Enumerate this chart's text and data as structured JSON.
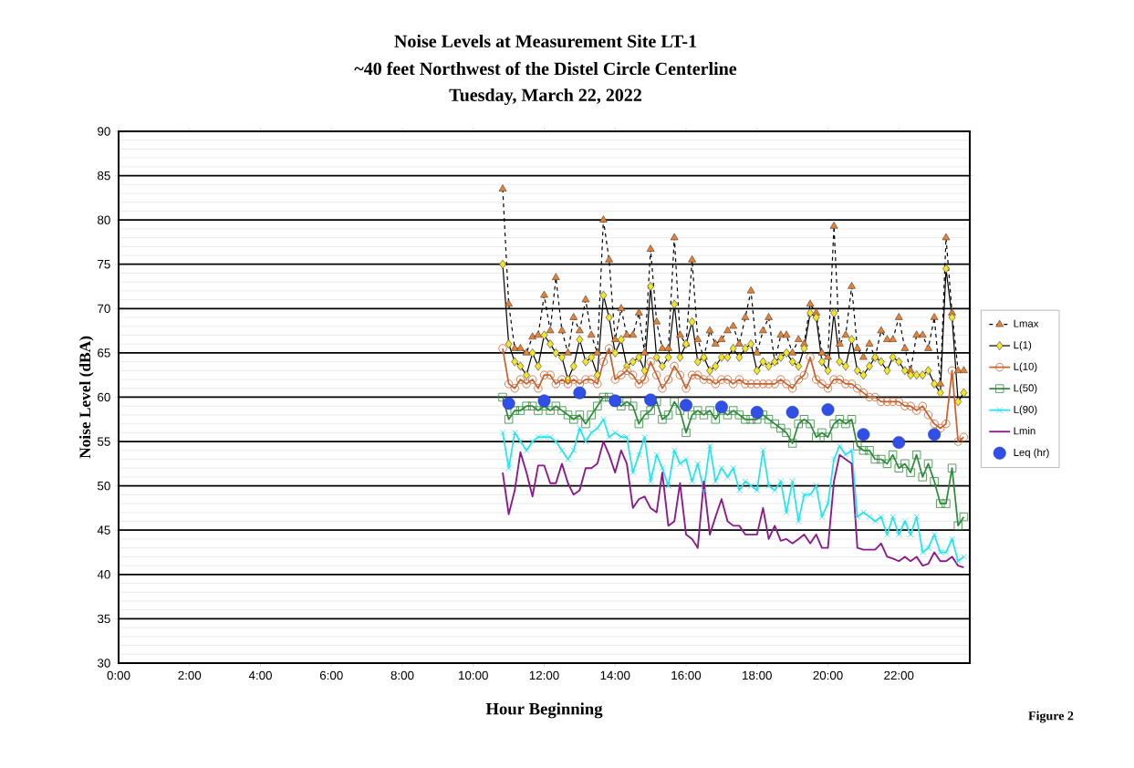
{
  "chart_data": {
    "type": "line",
    "title": "Noise Levels at Measurement Site LT-1",
    "subtitle": "~40 feet Northwest of the Distel Circle Centerline",
    "annotations": [
      "Tuesday, March 22, 2022",
      "Figure 2"
    ],
    "xlabel": "Hour Beginning",
    "ylabel": "Noise Level (dBA)",
    "xlim": [
      0,
      24
    ],
    "ylim": [
      30,
      90
    ],
    "xticks": [
      {
        "value": 0,
        "label": "0:00"
      },
      {
        "value": 2,
        "label": "2:00"
      },
      {
        "value": 4,
        "label": "4:00"
      },
      {
        "value": 6,
        "label": "6:00"
      },
      {
        "value": 8,
        "label": "8:00"
      },
      {
        "value": 10,
        "label": "10:00"
      },
      {
        "value": 12,
        "label": "12:00"
      },
      {
        "value": 14,
        "label": "14:00"
      },
      {
        "value": 16,
        "label": "16:00"
      },
      {
        "value": 18,
        "label": "18:00"
      },
      {
        "value": 20,
        "label": "20:00"
      },
      {
        "value": 22,
        "label": "22:00"
      }
    ],
    "yticks": [
      30,
      35,
      40,
      45,
      50,
      55,
      60,
      65,
      70,
      75,
      80,
      85,
      90
    ],
    "grid": "y",
    "legend": "right",
    "x": [
      10.83,
      11,
      11.17,
      11.33,
      11.5,
      11.67,
      11.83,
      12,
      12.17,
      12.33,
      12.5,
      12.67,
      12.83,
      13,
      13.17,
      13.33,
      13.5,
      13.67,
      13.83,
      14,
      14.17,
      14.33,
      14.5,
      14.67,
      14.83,
      15,
      15.17,
      15.33,
      15.5,
      15.67,
      15.83,
      16,
      16.17,
      16.33,
      16.5,
      16.67,
      16.83,
      17,
      17.17,
      17.33,
      17.5,
      17.67,
      17.83,
      18,
      18.17,
      18.33,
      18.5,
      18.67,
      18.83,
      19,
      19.17,
      19.33,
      19.5,
      19.67,
      19.83,
      20,
      20.17,
      20.33,
      20.5,
      20.67,
      20.83,
      21,
      21.17,
      21.33,
      21.5,
      21.67,
      21.83,
      22,
      22.17,
      22.33,
      22.5,
      22.67,
      22.83,
      23,
      23.17,
      23.33,
      23.5,
      23.67,
      23.83
    ],
    "series": [
      {
        "name": "Lmax",
        "color": "#f07f2a",
        "marker": "triangle",
        "line_style": "dashed",
        "values": [
          83.5,
          70.5,
          65.5,
          65.5,
          65,
          66.8,
          67,
          71.5,
          67.5,
          73.5,
          67.5,
          65,
          69,
          67.5,
          71,
          67,
          65,
          80,
          75.5,
          66.5,
          70,
          67,
          67,
          69.5,
          65,
          76.7,
          68.5,
          65.5,
          65.5,
          78,
          67,
          66,
          75.5,
          66.5,
          64.5,
          67.5,
          66,
          66.5,
          67.5,
          68,
          66,
          69,
          72,
          65,
          67.5,
          69,
          64,
          67,
          67,
          65,
          66.5,
          66,
          70.5,
          69.5,
          65,
          64.5,
          79.3,
          66,
          67,
          72.5,
          65.5,
          64.5,
          66,
          64.5,
          67.5,
          66.5,
          66.5,
          69,
          65.5,
          63,
          67,
          67,
          65.5,
          69,
          61.5,
          78,
          69.5,
          63,
          63
        ]
      },
      {
        "name": "L(1)",
        "color": "#f5e625",
        "marker": "diamond",
        "line_style": "solid",
        "values": [
          75,
          66,
          64,
          63.5,
          62.5,
          65,
          63.5,
          67,
          66,
          65,
          64.5,
          62,
          63.5,
          66.5,
          64,
          64.5,
          62.5,
          71.5,
          69,
          65,
          66.5,
          63.5,
          64,
          64.5,
          63,
          72.5,
          64.5,
          63.5,
          64.5,
          70.5,
          64.5,
          66,
          68.5,
          64,
          64.5,
          63,
          63.5,
          64.5,
          64.5,
          65.5,
          64.5,
          65.5,
          66,
          63,
          64,
          63.5,
          64,
          64.5,
          65,
          64,
          63.5,
          65.5,
          69.5,
          69,
          64,
          63,
          69.5,
          64,
          63.5,
          66.5,
          63,
          62.5,
          63.5,
          64.5,
          64,
          63,
          64.5,
          64,
          63,
          62.5,
          62.5,
          62.5,
          63,
          61.5,
          60.5,
          74.5,
          69,
          59.5,
          60.5
        ]
      },
      {
        "name": "L(10)",
        "color": "#c8622e",
        "marker": "circle",
        "line_style": "solid",
        "values": [
          65.5,
          61.5,
          61,
          62,
          61.5,
          62,
          61,
          62.5,
          62.5,
          61.5,
          62,
          61.5,
          62,
          61.5,
          62,
          62,
          61.5,
          64,
          65.5,
          62,
          62.5,
          63,
          62.5,
          61.5,
          62,
          64,
          62.5,
          61,
          62,
          63.5,
          62.5,
          61,
          62.5,
          62.5,
          62,
          62,
          61.5,
          62,
          62,
          61.5,
          62,
          61.5,
          61.5,
          61.5,
          61.5,
          61.5,
          61.5,
          62,
          61.5,
          61,
          62,
          62.5,
          64.5,
          62,
          61.5,
          61,
          62,
          62,
          61.5,
          61.5,
          61,
          60.5,
          60,
          60,
          59.5,
          59.5,
          59.5,
          59.5,
          59,
          59,
          58.5,
          59,
          58,
          57,
          56.5,
          57,
          63,
          55,
          55.5
        ]
      },
      {
        "name": "L(50)",
        "color": "#2e8b3a",
        "marker": "square",
        "line_style": "solid",
        "values": [
          60,
          57.5,
          58.5,
          58.5,
          59,
          59,
          58.5,
          59,
          58.5,
          59,
          58.5,
          58,
          57.5,
          58,
          57,
          58,
          59,
          60,
          60,
          59.5,
          59,
          59.5,
          59,
          57,
          58,
          58.5,
          59.5,
          57.5,
          58,
          59.5,
          58.5,
          56,
          58,
          58.5,
          58,
          58.5,
          57.5,
          58.5,
          58,
          58.5,
          58,
          57.5,
          57.5,
          57.5,
          58,
          57.5,
          57,
          56.5,
          56,
          54.8,
          57,
          57.5,
          57,
          55.5,
          56,
          55.5,
          57,
          57.5,
          57,
          57.5,
          54.5,
          54,
          54,
          53,
          53,
          52.5,
          53.5,
          52,
          52.5,
          51.5,
          53.5,
          51,
          52.5,
          50.5,
          48,
          48,
          52,
          45.5,
          46.5
        ]
      },
      {
        "name": "L(90)",
        "color": "#22e5f0",
        "marker": "cross",
        "line_style": "solid",
        "values": [
          56,
          52,
          56,
          55,
          54,
          55,
          55.5,
          55.5,
          55.5,
          55,
          54,
          53,
          54,
          56.5,
          55,
          56,
          56.5,
          57.5,
          55.5,
          56,
          55.5,
          55.5,
          51.5,
          53.5,
          55.5,
          50.5,
          53.5,
          52,
          50,
          54,
          52.5,
          53,
          50.5,
          52.5,
          49.5,
          54.5,
          50.5,
          52,
          51,
          52,
          49.5,
          50.5,
          50,
          49.5,
          54,
          50,
          49.5,
          50.5,
          47,
          50.5,
          46,
          49,
          49,
          50,
          46.5,
          48,
          53,
          54.5,
          53.5,
          54,
          46.5,
          47,
          46.5,
          46,
          46.5,
          44.5,
          46.5,
          44.5,
          46,
          44.5,
          46.5,
          42.5,
          43,
          44.5,
          42.5,
          42.5,
          44,
          41.5,
          42
        ]
      },
      {
        "name": "Lmin",
        "color": "#8b1a8b",
        "marker": "none",
        "line_style": "solid",
        "values": [
          51.5,
          46.8,
          49.5,
          53.8,
          51.5,
          48.8,
          52.3,
          52.3,
          50.3,
          50.3,
          52.5,
          50.3,
          49,
          49.5,
          52,
          52,
          52.5,
          55,
          53.5,
          51.5,
          54,
          52.5,
          47.5,
          48.5,
          48.8,
          47.5,
          47,
          51.5,
          45.5,
          46,
          50.3,
          44.5,
          44,
          43,
          50.5,
          44.5,
          46.5,
          48.5,
          46,
          45.5,
          45.5,
          44.5,
          44.5,
          44.5,
          47.5,
          44,
          45.5,
          43.8,
          44,
          43.5,
          44,
          44.5,
          43.5,
          44.5,
          43,
          43,
          50.5,
          53.5,
          53,
          52.5,
          43,
          42.8,
          42.8,
          42.8,
          43.5,
          42,
          41.8,
          41.5,
          42,
          41.5,
          42,
          41,
          41.2,
          42.5,
          41.5,
          41.5,
          42,
          41,
          40.8
        ]
      },
      {
        "name": "Leq (hr)",
        "type": "scatter",
        "color": "#2f4fe8",
        "marker": "circle",
        "x": [
          11,
          12,
          13,
          14,
          15,
          16,
          17,
          18,
          19,
          20,
          21,
          22,
          23
        ],
        "values": [
          59.3,
          59.6,
          60.5,
          59.6,
          59.7,
          59.1,
          58.9,
          58.3,
          58.3,
          58.6,
          55.8,
          54.9,
          55.8
        ]
      }
    ]
  }
}
